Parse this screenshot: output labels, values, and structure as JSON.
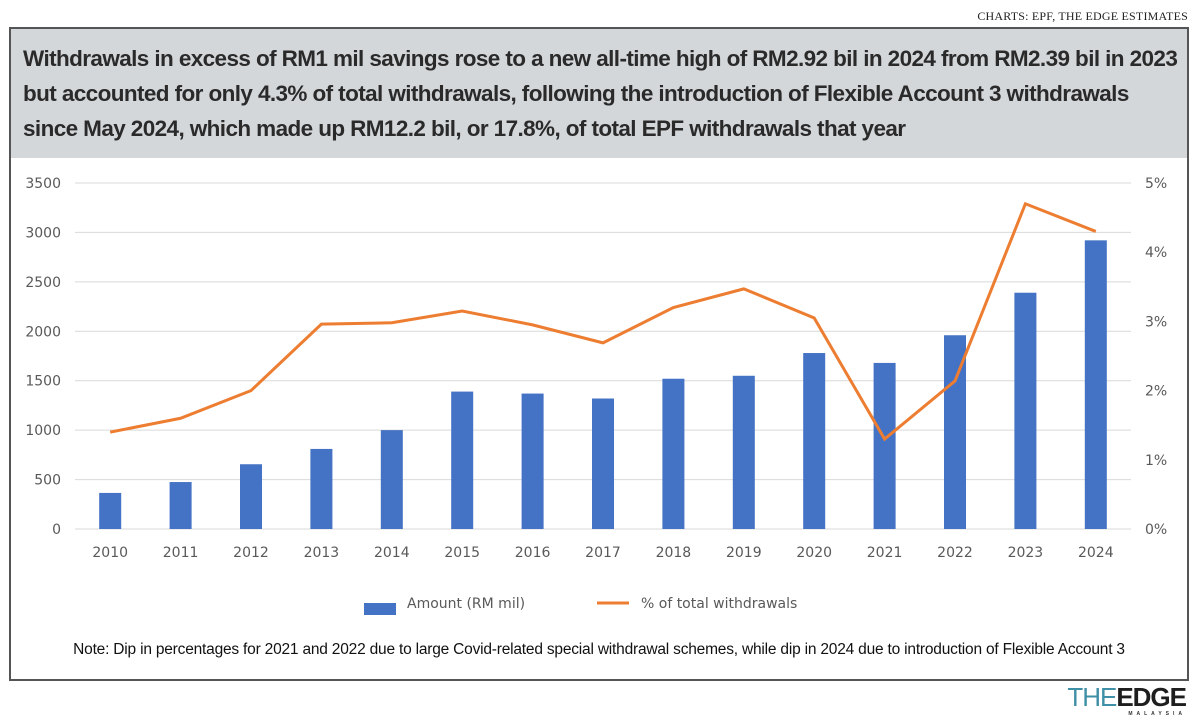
{
  "source": "CHARTS: EPF, THE EDGE ESTIMATES",
  "header": {
    "title": "Withdrawals in excess of RM1 mil savings rose to a new all-time high of RM2.92 bil in 2024 from RM2.39 bil in 2023 but accounted for only 4.3% of total withdrawals, following the introduction of Flexible Account 3 withdrawals since May 2024, which made up RM12.2 bil, or 17.8%, of total EPF withdrawals that year"
  },
  "note": "Note: Dip in percentages for 2021 and 2022 due to large Covid-related special withdrawal schemes, while dip in 2024 due to introduction of Flexible Account 3",
  "logo": {
    "the": "THE",
    "edge": "EDGE",
    "sub": "MALAYSIA"
  },
  "colors": {
    "bar": "#4472c4",
    "line": "#ed7d31",
    "grid": "#d9d9d9",
    "header_bg": "#d4d7da"
  },
  "chart_data": {
    "type": "bar",
    "title": "",
    "xlabel": "",
    "ylabel": "",
    "categories": [
      "2010",
      "2011",
      "2012",
      "2013",
      "2014",
      "2015",
      "2016",
      "2017",
      "2018",
      "2019",
      "2020",
      "2021",
      "2022",
      "2023",
      "2024"
    ],
    "series": [
      {
        "name": "Amount (RM mil)",
        "type": "bar",
        "axis": "left",
        "values": [
          365,
          475,
          655,
          810,
          1000,
          1390,
          1370,
          1320,
          1520,
          1550,
          1780,
          1680,
          1960,
          2390,
          2920
        ]
      },
      {
        "name": "% of total withdrawals",
        "type": "line",
        "axis": "right",
        "values": [
          1.4,
          1.6,
          2.0,
          2.96,
          2.98,
          3.15,
          2.95,
          2.69,
          3.2,
          3.47,
          3.05,
          1.3,
          2.14,
          4.7,
          4.3
        ]
      }
    ],
    "ylim": [
      0,
      3500
    ],
    "yticks": [
      "0",
      "500",
      "1000",
      "1500",
      "2000",
      "2500",
      "3000",
      "3500"
    ],
    "y2lim": [
      0,
      5
    ],
    "y2ticks": [
      "0%",
      "1%",
      "2%",
      "3%",
      "4%",
      "5%"
    ],
    "grid": true,
    "legend": "bottom-center"
  }
}
